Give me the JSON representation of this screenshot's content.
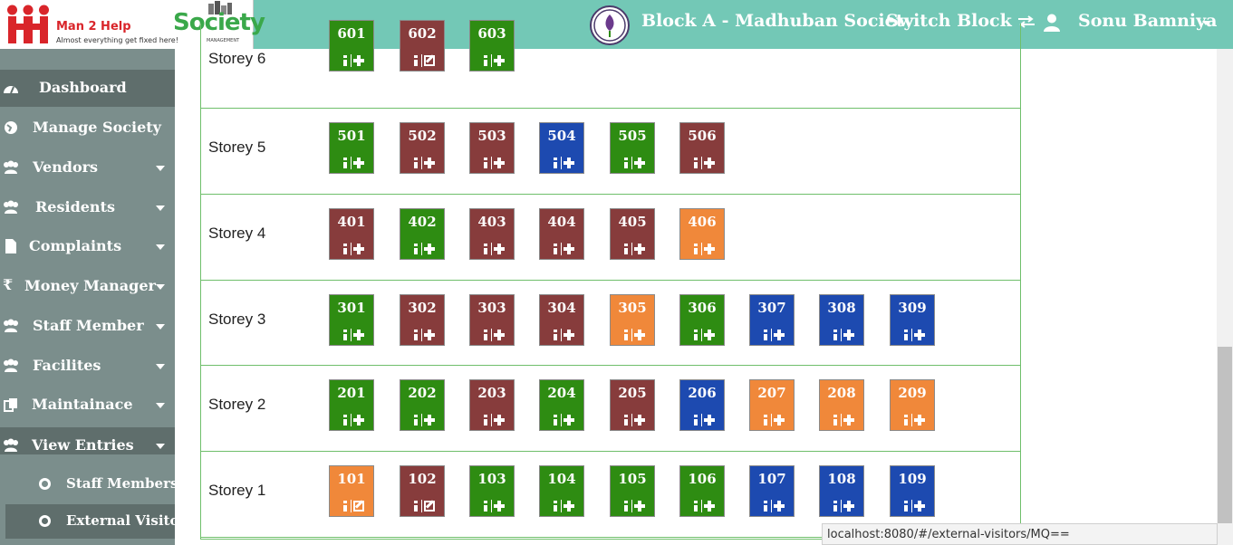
{
  "header": {
    "brand_name": "Man 2 Help",
    "brand_tagline": "Almost everything get fixed here!",
    "product_logo_text": "Society",
    "product_logo_sub": "MANAGEMENT",
    "block_title": "Block A - Madhuban Society",
    "switch_block_label": "Switch Block",
    "user_name": "Sonu Bamniya",
    "colors": {
      "header_bg": "#73c8b6",
      "sidebar_bg": "#7b8e8c",
      "sidebar_active": "#5f6e6c"
    }
  },
  "sidebar": {
    "items": [
      {
        "label": "Dashboard",
        "icon": "dashboard-icon",
        "has_submenu": false
      },
      {
        "label": "Manage Society",
        "icon": "globe-icon",
        "has_submenu": false
      },
      {
        "label": "Vendors",
        "icon": "users-icon",
        "has_submenu": true
      },
      {
        "label": "Residents",
        "icon": "users-icon",
        "has_submenu": true
      },
      {
        "label": "Complaints",
        "icon": "file-icon",
        "has_submenu": true
      },
      {
        "label": "Money Manager",
        "icon": "rupee-icon",
        "has_submenu": true
      },
      {
        "label": "Staff Member",
        "icon": "users-icon",
        "has_submenu": true
      },
      {
        "label": "Facilites",
        "icon": "users-icon",
        "has_submenu": true
      },
      {
        "label": "Maintainace",
        "icon": "copy-icon",
        "has_submenu": true
      },
      {
        "label": "View Entries",
        "icon": "users-icon",
        "has_submenu": true,
        "expanded": true
      }
    ],
    "subitems": [
      {
        "label": "Staff Members",
        "active": false
      },
      {
        "label": "External Visitors",
        "active": true
      }
    ]
  },
  "storeys": [
    {
      "label": "Storey 6",
      "flats": [
        {
          "number": "601",
          "color": "green",
          "action": "add"
        },
        {
          "number": "602",
          "color": "maroon",
          "action": "edit"
        },
        {
          "number": "603",
          "color": "green",
          "action": "add"
        }
      ]
    },
    {
      "label": "Storey 5",
      "flats": [
        {
          "number": "501",
          "color": "green",
          "action": "add"
        },
        {
          "number": "502",
          "color": "maroon",
          "action": "add"
        },
        {
          "number": "503",
          "color": "maroon",
          "action": "add"
        },
        {
          "number": "504",
          "color": "blue",
          "action": "add"
        },
        {
          "number": "505",
          "color": "green",
          "action": "add"
        },
        {
          "number": "506",
          "color": "maroon",
          "action": "add"
        }
      ]
    },
    {
      "label": "Storey 4",
      "flats": [
        {
          "number": "401",
          "color": "maroon",
          "action": "add"
        },
        {
          "number": "402",
          "color": "green",
          "action": "add"
        },
        {
          "number": "403",
          "color": "maroon",
          "action": "add"
        },
        {
          "number": "404",
          "color": "maroon",
          "action": "add"
        },
        {
          "number": "405",
          "color": "maroon",
          "action": "add"
        },
        {
          "number": "406",
          "color": "orange",
          "action": "add"
        }
      ]
    },
    {
      "label": "Storey 3",
      "flats": [
        {
          "number": "301",
          "color": "green",
          "action": "add"
        },
        {
          "number": "302",
          "color": "maroon",
          "action": "add"
        },
        {
          "number": "303",
          "color": "maroon",
          "action": "add"
        },
        {
          "number": "304",
          "color": "maroon",
          "action": "add"
        },
        {
          "number": "305",
          "color": "orange",
          "action": "add"
        },
        {
          "number": "306",
          "color": "green",
          "action": "add"
        },
        {
          "number": "307",
          "color": "blue",
          "action": "add"
        },
        {
          "number": "308",
          "color": "blue",
          "action": "add"
        },
        {
          "number": "309",
          "color": "blue",
          "action": "add"
        }
      ]
    },
    {
      "label": "Storey 2",
      "flats": [
        {
          "number": "201",
          "color": "green",
          "action": "add"
        },
        {
          "number": "202",
          "color": "green",
          "action": "add"
        },
        {
          "number": "203",
          "color": "maroon",
          "action": "add"
        },
        {
          "number": "204",
          "color": "green",
          "action": "add"
        },
        {
          "number": "205",
          "color": "maroon",
          "action": "add"
        },
        {
          "number": "206",
          "color": "blue",
          "action": "add"
        },
        {
          "number": "207",
          "color": "orange",
          "action": "add"
        },
        {
          "number": "208",
          "color": "orange",
          "action": "add"
        },
        {
          "number": "209",
          "color": "orange",
          "action": "add"
        }
      ]
    },
    {
      "label": "Storey 1",
      "flats": [
        {
          "number": "101",
          "color": "orange",
          "action": "edit"
        },
        {
          "number": "102",
          "color": "maroon",
          "action": "edit"
        },
        {
          "number": "103",
          "color": "green",
          "action": "add"
        },
        {
          "number": "104",
          "color": "green",
          "action": "add"
        },
        {
          "number": "105",
          "color": "green",
          "action": "add"
        },
        {
          "number": "106",
          "color": "green",
          "action": "add"
        },
        {
          "number": "107",
          "color": "blue",
          "action": "add"
        },
        {
          "number": "108",
          "color": "blue",
          "action": "add"
        },
        {
          "number": "109",
          "color": "blue",
          "action": "add"
        }
      ]
    }
  ],
  "flat_colors": {
    "green": "#2e8c12",
    "maroon": "#873c3c",
    "blue": "#1d4ab0",
    "orange": "#f0883a"
  },
  "status_bar": {
    "url": "localhost:8080/#/external-visitors/MQ=="
  }
}
